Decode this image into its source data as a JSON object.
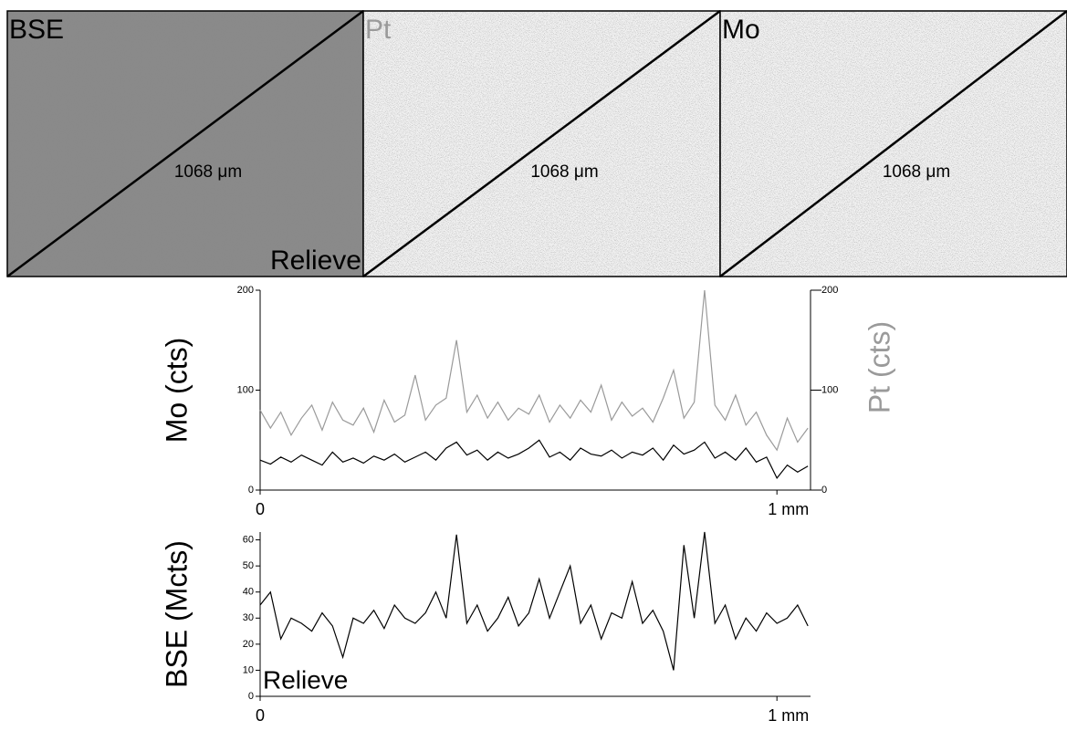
{
  "images": [
    {
      "label": "BSE",
      "scan_length": "1068 μm",
      "annotation": "Relieve"
    },
    {
      "label": "Pt",
      "scan_length": "1068 μm"
    },
    {
      "label": "Mo",
      "scan_length": "1068 μm"
    }
  ],
  "chart_data": [
    {
      "type": "line",
      "ylabel": "Mo (cts)",
      "y2label": "Pt (cts)",
      "x": [
        0,
        0.02,
        0.04,
        0.06,
        0.08,
        0.1,
        0.12,
        0.14,
        0.16,
        0.18,
        0.2,
        0.22,
        0.24,
        0.26,
        0.28,
        0.3,
        0.32,
        0.34,
        0.36,
        0.38,
        0.4,
        0.42,
        0.44,
        0.46,
        0.48,
        0.5,
        0.52,
        0.54,
        0.56,
        0.58,
        0.6,
        0.62,
        0.64,
        0.66,
        0.68,
        0.7,
        0.72,
        0.74,
        0.76,
        0.78,
        0.8,
        0.82,
        0.84,
        0.86,
        0.88,
        0.9,
        0.92,
        0.94,
        0.96,
        0.98,
        1.0,
        1.02,
        1.04,
        1.06
      ],
      "series": [
        {
          "name": "Pt",
          "color": "#9a9a9a",
          "axis": "y2",
          "values": [
            80,
            62,
            78,
            55,
            72,
            85,
            60,
            88,
            70,
            65,
            82,
            58,
            90,
            68,
            75,
            115,
            70,
            85,
            92,
            150,
            78,
            95,
            72,
            88,
            70,
            82,
            76,
            95,
            68,
            85,
            72,
            90,
            78,
            105,
            70,
            88,
            74,
            82,
            68,
            92,
            120,
            72,
            88,
            200,
            85,
            70,
            95,
            65,
            78,
            55,
            40,
            72,
            48,
            62
          ]
        },
        {
          "name": "Mo",
          "color": "#000000",
          "values": [
            30,
            26,
            33,
            28,
            35,
            30,
            25,
            38,
            28,
            32,
            27,
            34,
            30,
            36,
            28,
            33,
            38,
            30,
            42,
            48,
            35,
            40,
            30,
            38,
            32,
            36,
            42,
            50,
            33,
            38,
            30,
            42,
            36,
            34,
            40,
            32,
            38,
            35,
            42,
            30,
            45,
            36,
            40,
            48,
            32,
            38,
            30,
            42,
            28,
            33,
            12,
            25,
            18,
            24
          ]
        }
      ],
      "xlim": [
        0,
        1.065
      ],
      "xticks": [
        0,
        {
          "value": 1,
          "label": "1 mm"
        }
      ],
      "ylim": [
        0,
        200
      ],
      "yticks": [
        0,
        100,
        200
      ],
      "y2lim": [
        0,
        200
      ],
      "y2ticks": [
        0,
        100,
        200
      ]
    },
    {
      "type": "line",
      "ylabel": "BSE (Mcts)",
      "annotation": "Relieve",
      "x": [
        0,
        0.02,
        0.04,
        0.06,
        0.08,
        0.1,
        0.12,
        0.14,
        0.16,
        0.18,
        0.2,
        0.22,
        0.24,
        0.26,
        0.28,
        0.3,
        0.32,
        0.34,
        0.36,
        0.38,
        0.4,
        0.42,
        0.44,
        0.46,
        0.48,
        0.5,
        0.52,
        0.54,
        0.56,
        0.58,
        0.6,
        0.62,
        0.64,
        0.66,
        0.68,
        0.7,
        0.72,
        0.74,
        0.76,
        0.78,
        0.8,
        0.82,
        0.84,
        0.86,
        0.88,
        0.9,
        0.92,
        0.94,
        0.96,
        0.98,
        1.0,
        1.02,
        1.04,
        1.06
      ],
      "series": [
        {
          "name": "BSE",
          "color": "#000000",
          "values": [
            35,
            40,
            22,
            30,
            28,
            25,
            32,
            27,
            15,
            30,
            28,
            33,
            26,
            35,
            30,
            28,
            32,
            40,
            30,
            62,
            28,
            35,
            25,
            30,
            38,
            27,
            32,
            45,
            30,
            40,
            50,
            28,
            35,
            22,
            32,
            30,
            44,
            28,
            33,
            25,
            10,
            58,
            30,
            63,
            28,
            35,
            22,
            30,
            25,
            32,
            28,
            30,
            35,
            27
          ]
        }
      ],
      "xlim": [
        0,
        1.065
      ],
      "xticks": [
        0,
        {
          "value": 1,
          "label": "1 mm"
        }
      ],
      "ylim": [
        0,
        63
      ],
      "yticks": [
        0,
        10,
        20,
        30,
        40,
        50,
        60
      ]
    }
  ]
}
